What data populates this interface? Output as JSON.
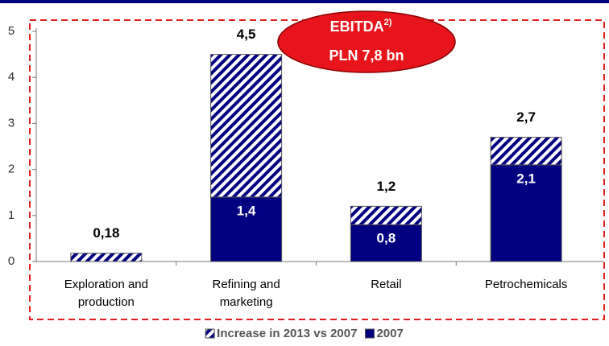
{
  "chart_data": {
    "type": "stacked_bar",
    "categories": [
      "Exploration and production",
      "Refining and marketing",
      "Retail",
      "Petrochemicals"
    ],
    "series": [
      {
        "name": "2007",
        "color": "#000080",
        "pattern": "solid",
        "values": [
          null,
          1.4,
          0.8,
          2.1
        ],
        "value_labels": [
          null,
          "1,4",
          "0,8",
          "2,1"
        ]
      },
      {
        "name": "Increase in 2013 vs 2007",
        "color": "#000080",
        "pattern": "hatched",
        "values": [
          0.18,
          3.1,
          0.4,
          0.6
        ]
      }
    ],
    "totals": {
      "values": [
        0.18,
        4.5,
        1.2,
        2.7
      ],
      "value_labels": [
        "0,18",
        "4,5",
        "1,2",
        "2,7"
      ]
    },
    "annotation": {
      "title": "EBITDA",
      "superscript": "2)",
      "text": "PLN 7,8 bn"
    },
    "legend_order": [
      1,
      0
    ],
    "ylim": [
      0,
      5
    ],
    "yticks": [
      0,
      1,
      2,
      3,
      4,
      5
    ],
    "grid": false
  }
}
